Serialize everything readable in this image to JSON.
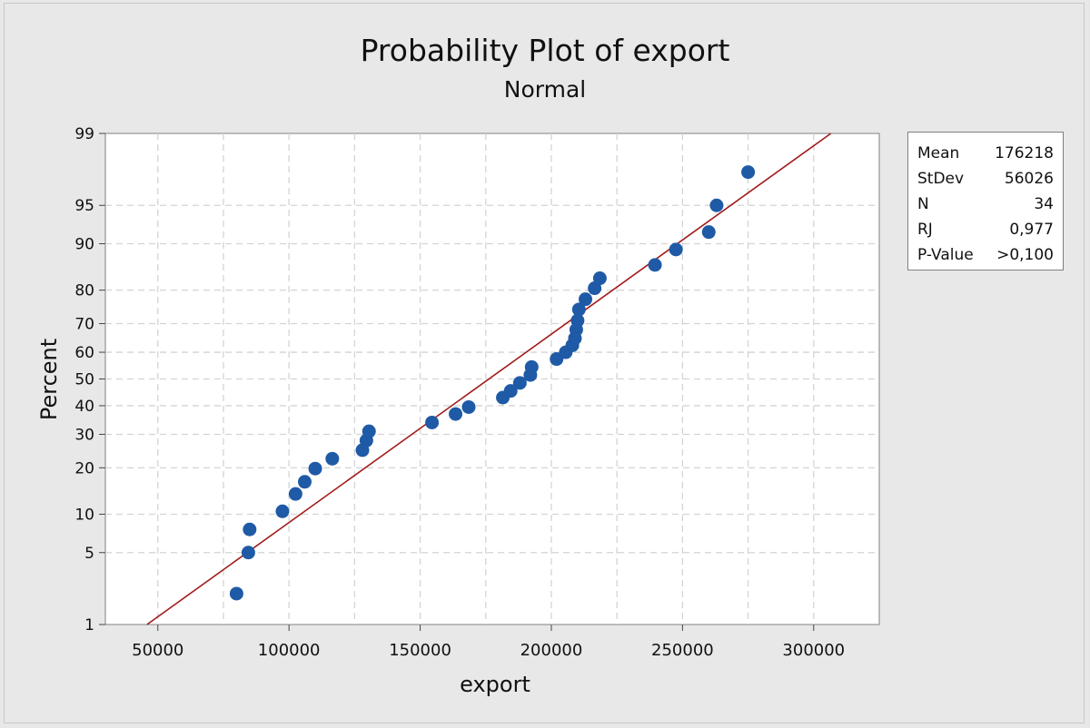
{
  "chart_data": {
    "type": "scatter",
    "title": "Probability Plot of export",
    "subtitle": "Normal",
    "xlabel": "export",
    "ylabel": "Percent",
    "xlim": [
      30000,
      325000
    ],
    "ylim": [
      1,
      99
    ],
    "y_scale": "normal-probability",
    "grid": true,
    "legend_placement": "right",
    "xticks": [
      50000,
      100000,
      150000,
      200000,
      250000,
      300000
    ],
    "xtick_labels": [
      "50000",
      "100000",
      "150000",
      "200000",
      "250000",
      "300000"
    ],
    "yticks": [
      1,
      5,
      10,
      20,
      30,
      40,
      50,
      60,
      70,
      80,
      90,
      95,
      99
    ],
    "ytick_labels": [
      "1",
      "5",
      "10",
      "20",
      "30",
      "40",
      "50",
      "60",
      "70",
      "80",
      "90",
      "95",
      "99"
    ],
    "fit_line": {
      "color": "#a11b1b",
      "mean": 176218,
      "stdev": 56026
    },
    "points": [
      {
        "x": 80000,
        "y": 2.1
      },
      {
        "x": 84500,
        "y": 5.0
      },
      {
        "x": 85000,
        "y": 7.7
      },
      {
        "x": 97500,
        "y": 10.5
      },
      {
        "x": 102500,
        "y": 13.8
      },
      {
        "x": 106000,
        "y": 16.5
      },
      {
        "x": 110000,
        "y": 19.8
      },
      {
        "x": 116500,
        "y": 22.5
      },
      {
        "x": 128000,
        "y": 25.0
      },
      {
        "x": 129500,
        "y": 28.0
      },
      {
        "x": 130500,
        "y": 31.0
      },
      {
        "x": 154500,
        "y": 34.0
      },
      {
        "x": 163500,
        "y": 37.0
      },
      {
        "x": 168500,
        "y": 39.5
      },
      {
        "x": 181500,
        "y": 43.0
      },
      {
        "x": 184500,
        "y": 45.5
      },
      {
        "x": 188000,
        "y": 48.5
      },
      {
        "x": 192000,
        "y": 51.5
      },
      {
        "x": 192500,
        "y": 54.5
      },
      {
        "x": 202000,
        "y": 57.5
      },
      {
        "x": 205500,
        "y": 60.0
      },
      {
        "x": 208000,
        "y": 62.5
      },
      {
        "x": 209000,
        "y": 65.0
      },
      {
        "x": 209500,
        "y": 68.0
      },
      {
        "x": 210000,
        "y": 71.0
      },
      {
        "x": 210500,
        "y": 74.5
      },
      {
        "x": 213000,
        "y": 77.5
      },
      {
        "x": 216500,
        "y": 80.5
      },
      {
        "x": 218500,
        "y": 83.0
      },
      {
        "x": 239500,
        "y": 86.0
      },
      {
        "x": 247500,
        "y": 89.0
      },
      {
        "x": 260000,
        "y": 91.8
      },
      {
        "x": 263000,
        "y": 95.0
      },
      {
        "x": 275000,
        "y": 97.5
      }
    ],
    "marker_color": "#1f5aa6"
  },
  "stats": {
    "rows": [
      {
        "label": "Mean",
        "value": "176218"
      },
      {
        "label": "StDev",
        "value": "56026"
      },
      {
        "label": "N",
        "value": "34"
      },
      {
        "label": "RJ",
        "value": "0,977"
      },
      {
        "label": "P-Value",
        "value": ">0,100"
      }
    ]
  }
}
